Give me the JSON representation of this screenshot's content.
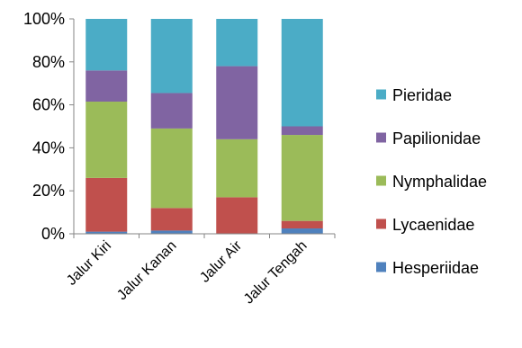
{
  "chart_data": {
    "type": "bar",
    "stacked": true,
    "categories": [
      "Jalur Kiri",
      "Jalur Kanan",
      "Jalur Air",
      "Jalur Tengah"
    ],
    "series": [
      {
        "name": "Hesperiidae",
        "color": "#4F81BD",
        "values": [
          1,
          1.5,
          0,
          2.5
        ]
      },
      {
        "name": "Lycaenidae",
        "color": "#C0504D",
        "values": [
          25,
          10.5,
          17,
          3.5
        ]
      },
      {
        "name": "Nymphalidae",
        "color": "#9BBB59",
        "values": [
          35.5,
          37,
          27,
          40
        ]
      },
      {
        "name": "Papilionidae",
        "color": "#8064A2",
        "values": [
          14.5,
          16.5,
          34,
          4
        ]
      },
      {
        "name": "Pieridae",
        "color": "#4BACC6",
        "values": [
          24,
          34.5,
          22,
          50
        ]
      }
    ],
    "ylim": [
      0,
      100
    ],
    "yticks": [
      "0%",
      "20%",
      "40%",
      "60%",
      "80%",
      "100%"
    ],
    "legend_position": "right",
    "grid": false
  }
}
